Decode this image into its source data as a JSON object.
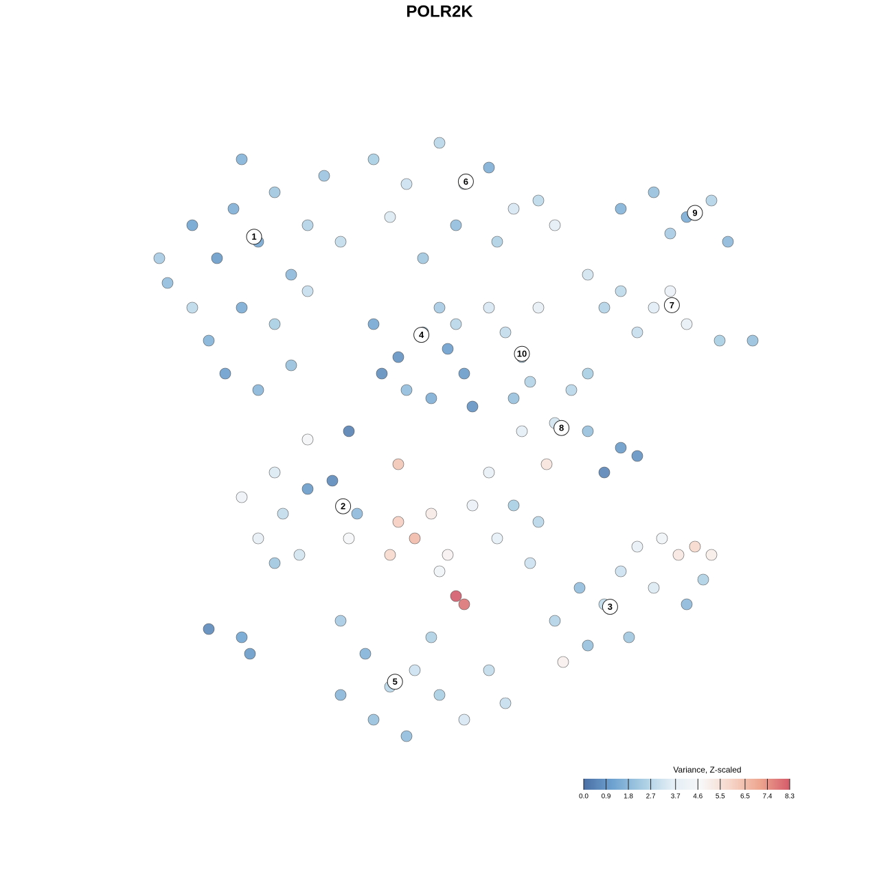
{
  "chart_data": {
    "type": "scatter",
    "title": "POLR2K",
    "xlim": [
      -40,
      40
    ],
    "ylim": [
      -40,
      40
    ],
    "x": [
      -33,
      -30,
      -27,
      -25,
      -22,
      -20,
      -18,
      -24,
      -28,
      -20,
      -16,
      -14,
      -26,
      -22,
      -30,
      -18,
      -12,
      -34,
      -24,
      -16,
      -8,
      -4,
      0,
      3,
      6,
      9,
      12,
      -6,
      2,
      7,
      14,
      -2,
      22,
      26,
      30,
      33,
      35,
      28,
      18,
      22,
      26,
      30,
      34,
      38,
      24,
      28,
      20,
      -8,
      -5,
      -2,
      1,
      -4,
      0,
      3,
      -7,
      -1,
      2,
      8,
      10,
      11,
      6,
      12,
      9,
      10,
      14,
      18,
      22,
      24,
      20,
      16,
      18,
      13,
      -22,
      -19,
      -16,
      -13,
      -10,
      -24,
      -20,
      -17,
      -11,
      -20,
      -5,
      -3,
      -6,
      -1,
      1,
      4,
      7,
      3,
      2,
      -5,
      0,
      6,
      9,
      12,
      11,
      14,
      17,
      20,
      23,
      26,
      29,
      31,
      33,
      27,
      24,
      18,
      22,
      30,
      32,
      15,
      -12,
      -9,
      -6,
      -3,
      0,
      3,
      -8,
      -4,
      6,
      -12,
      -1,
      8,
      -28,
      -24,
      -23,
      -16,
      -11,
      4
    ],
    "y": [
      19,
      26,
      22,
      28,
      24,
      30,
      20,
      16,
      12,
      14,
      26,
      32,
      8,
      6,
      16,
      9,
      24,
      22,
      34,
      18,
      34,
      31,
      36,
      31,
      33,
      28,
      29,
      27,
      26,
      24,
      26,
      22,
      28,
      30,
      27,
      29,
      24,
      25,
      20,
      18,
      16,
      14,
      12,
      12,
      13,
      18,
      16,
      14,
      10,
      13,
      11,
      6,
      16,
      8,
      8,
      5,
      14,
      13,
      10,
      7,
      16,
      16,
      5,
      1,
      2,
      1,
      -1,
      -2,
      -4,
      6,
      8,
      -3,
      -12,
      -9,
      -6,
      -5,
      -9,
      -7,
      -15,
      -14,
      -12,
      -4,
      -10,
      -12,
      -14,
      -9,
      -14,
      -8,
      -12,
      -20,
      -19,
      -3,
      -16,
      -4,
      -8,
      -10,
      -15,
      -22,
      -18,
      -20,
      -24,
      -18,
      -14,
      -13,
      -14,
      -12,
      -13,
      -25,
      -16,
      -20,
      -17,
      -27,
      -22,
      -26,
      -30,
      -28,
      -31,
      -34,
      -34,
      -36,
      -28,
      -31,
      -24,
      -32,
      -23,
      -24,
      -26,
      0,
      1,
      4
    ],
    "values": [
      1.9,
      1.2,
      1.0,
      1.5,
      1.3,
      2.2,
      1.8,
      1.4,
      1.6,
      2.4,
      2.6,
      2.1,
      1.1,
      1.7,
      2.8,
      2.0,
      2.9,
      2.3,
      1.6,
      3.0,
      2.4,
      3.1,
      2.7,
      2.9,
      1.5,
      3.3,
      2.8,
      3.4,
      1.9,
      2.5,
      3.6,
      2.2,
      1.6,
      2.0,
      1.4,
      2.6,
      1.8,
      2.3,
      3.2,
      2.8,
      3.5,
      3.9,
      2.4,
      2.0,
      3.0,
      4.0,
      2.6,
      1.3,
      0.8,
      1.6,
      1.1,
      1.9,
      2.3,
      1.0,
      0.7,
      1.5,
      2.7,
      2.9,
      2.2,
      2.6,
      3.3,
      3.8,
      2.0,
      3.6,
      3.2,
      2.0,
      1.0,
      0.8,
      0.5,
      2.7,
      2.4,
      5.4,
      3.8,
      2.9,
      1.0,
      0.6,
      1.8,
      4.2,
      2.2,
      3.2,
      4.6,
      3.4,
      6.1,
      6.6,
      5.8,
      5.2,
      4.9,
      4.0,
      3.7,
      7.9,
      8.3,
      6.3,
      4.4,
      3.9,
      2.4,
      2.7,
      3.1,
      2.6,
      1.9,
      2.8,
      2.2,
      3.4,
      5.3,
      5.8,
      5.1,
      4.3,
      3.9,
      2.0,
      3.1,
      1.8,
      2.5,
      5.0,
      2.3,
      1.6,
      2.7,
      3.1,
      2.4,
      3.3,
      2.0,
      1.9,
      2.9,
      1.7,
      2.5,
      3.0,
      0.6,
      1.2,
      1.0,
      4.5,
      0.4,
      0.8
    ],
    "clusters": [
      {
        "label": "1",
        "x": -22.5,
        "y": 24.6
      },
      {
        "label": "2",
        "x": -11.7,
        "y": -8.1
      },
      {
        "label": "3",
        "x": 20.7,
        "y": -20.3
      },
      {
        "label": "4",
        "x": -2.2,
        "y": 12.7
      },
      {
        "label": "5",
        "x": -5.4,
        "y": -29.4
      },
      {
        "label": "6",
        "x": 3.2,
        "y": 31.3
      },
      {
        "label": "7",
        "x": 28.2,
        "y": 16.3
      },
      {
        "label": "8",
        "x": 14.8,
        "y": 1.4
      },
      {
        "label": "9",
        "x": 31,
        "y": 27.5
      },
      {
        "label": "10",
        "x": 10,
        "y": 10.4
      }
    ],
    "colorbar": {
      "title": "Variance, Z-scaled",
      "lim": [
        0,
        8.3
      ],
      "ticks": [
        {
          "value": 0,
          "label": "0.0"
        },
        0.9,
        1.8,
        2.7,
        3.7,
        4.6,
        5.5,
        6.5,
        7.4,
        8.3
      ],
      "colors": [
        "#4a6fa5",
        "#6fa3d0",
        "#a8cde3",
        "#e3eef6",
        "#f7f7f7",
        "#f6d5c8",
        "#eda58f",
        "#d45b6a"
      ]
    }
  }
}
